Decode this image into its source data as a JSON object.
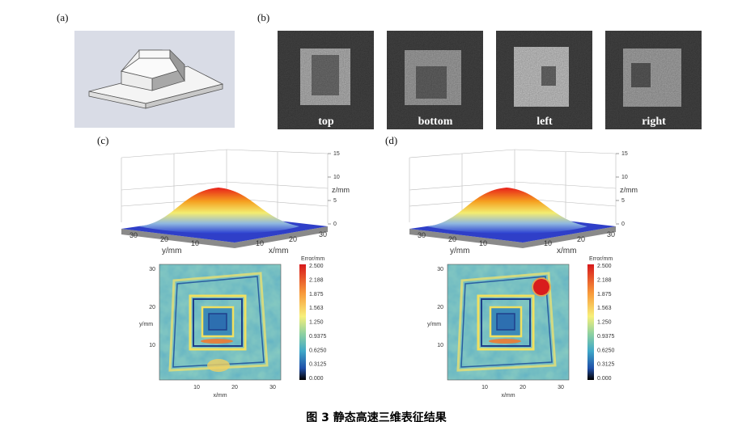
{
  "panel_a": {
    "label": "(a)"
  },
  "panel_b": {
    "label": "(b)",
    "views": [
      "top",
      "bottom",
      "left",
      "right"
    ]
  },
  "panels": [
    {
      "label": "(c)",
      "surface": {
        "z_ticks": [
          "0",
          "5",
          "10",
          "15"
        ],
        "z_label": "z/mm",
        "y_ticks": [
          "30",
          "20",
          "10"
        ],
        "y_label": "y/mm",
        "x_ticks": [
          "10",
          "20",
          "30"
        ],
        "x_label": "x/mm"
      },
      "map": {
        "y_ticks": [
          "10",
          "20",
          "30"
        ],
        "y_label": "y/mm",
        "x_ticks": [
          "10",
          "20",
          "30"
        ],
        "x_label": "x/mm",
        "colorbar_title": "Error/mm",
        "colorbar_ticks": [
          "2.500",
          "2.188",
          "1.875",
          "1.563",
          "1.250",
          "0.9375",
          "0.6250",
          "0.3125",
          "0.000"
        ]
      }
    },
    {
      "label": "(d)",
      "surface": {
        "z_ticks": [
          "0",
          "5",
          "10",
          "15"
        ],
        "z_label": "z/mm",
        "y_ticks": [
          "30",
          "20",
          "10"
        ],
        "y_label": "y/mm",
        "x_ticks": [
          "10",
          "20",
          "30"
        ],
        "x_label": "x/mm"
      },
      "map": {
        "y_ticks": [
          "10",
          "20",
          "30"
        ],
        "y_label": "y/mm",
        "x_ticks": [
          "10",
          "20",
          "30"
        ],
        "x_label": "x/mm",
        "colorbar_title": "Error/mm",
        "colorbar_ticks": [
          "2.500",
          "2.188",
          "1.875",
          "1.563",
          "1.250",
          "0.9375",
          "0.6250",
          "0.3125",
          "0.000"
        ]
      }
    }
  ],
  "caption": "图 3  静态高速三维表征结果"
}
